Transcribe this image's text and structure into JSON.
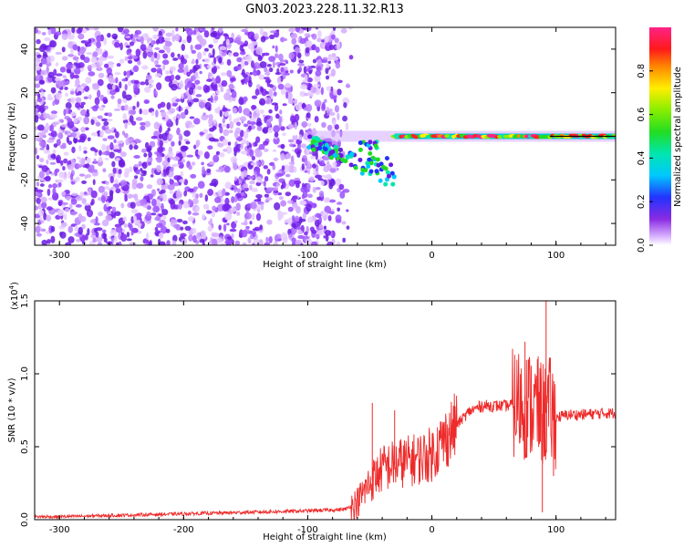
{
  "title": "GN03.2023.228.11.32.R13",
  "colors": {
    "snr_line": "#ee2a2a",
    "background": "#ffffff",
    "axis": "#000000"
  },
  "chart_data": [
    {
      "type": "heatmap",
      "xlabel": "Height of straight line (km)",
      "ylabel": "Frequency (Hz)",
      "xlim": [
        -320,
        148
      ],
      "ylim": [
        -50,
        50
      ],
      "x_ticks": [
        -300,
        -200,
        -100,
        0,
        100
      ],
      "y_ticks": [
        -40,
        -20,
        0,
        20,
        40
      ],
      "colorbar": {
        "label": "Normalized spectral amplitude",
        "range": [
          0,
          1
        ],
        "ticks": [
          0.0,
          0.2,
          0.4,
          0.6,
          0.8
        ],
        "colormap": "rainbow (purple-blue-cyan-green-yellow-red-magenta)"
      },
      "features": {
        "noise_region_x": [
          -320,
          -75
        ],
        "signal_band_frequency": 0,
        "signal_band_x": [
          -100,
          148
        ],
        "dip_near_x": -40,
        "dip_min_frequency": -22
      }
    },
    {
      "type": "line",
      "xlabel": "Height of straight line (km)",
      "ylabel": "SNR (10 * v/v)",
      "y_multiplier": "(x10^4)",
      "xlim": [
        -320,
        148
      ],
      "ylim": [
        0,
        1.5
      ],
      "x_ticks": [
        -300,
        -200,
        -100,
        0,
        100
      ],
      "y_ticks": [
        0.0,
        0.5,
        1.0,
        1.5
      ],
      "series": [
        {
          "x": [
            -320,
            -300,
            -250,
            -200,
            -150,
            -100,
            -70,
            -60,
            -50,
            -40,
            -30,
            -20,
            -10,
            0,
            10,
            20,
            30,
            40,
            60,
            70,
            80,
            90,
            95,
            100,
            110,
            120,
            140,
            148
          ],
          "y": [
            0.02,
            0.02,
            0.03,
            0.04,
            0.05,
            0.06,
            0.07,
            0.12,
            0.25,
            0.35,
            0.38,
            0.4,
            0.42,
            0.45,
            0.55,
            0.65,
            0.74,
            0.78,
            0.78,
            0.8,
            0.78,
            0.72,
            0.75,
            0.7,
            0.72,
            0.72,
            0.73,
            0.73
          ]
        }
      ],
      "spikes": [
        {
          "x": -48,
          "y": 0.8
        },
        {
          "x": -30,
          "y": 0.75
        },
        {
          "x": 75,
          "y": 1.22
        },
        {
          "x": 85,
          "y": 1.1
        },
        {
          "x": 92,
          "y": 1.5
        },
        {
          "x": 89,
          "y": 0.05
        },
        {
          "x": 98,
          "y": 0.3
        }
      ]
    }
  ]
}
